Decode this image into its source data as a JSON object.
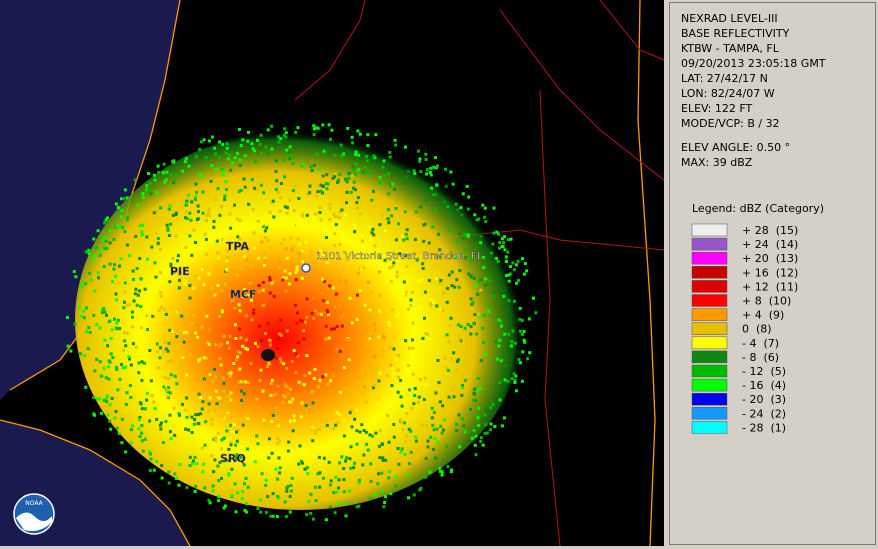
{
  "header": {
    "lines": [
      "NEXRAD LEVEL-III",
      "BASE REFLECTIVITY",
      "KTBW - TAMPA, FL",
      "09/20/2013 23:05:18 GMT",
      "LAT: 27/42/17 N",
      "LON: 82/24/07 W",
      "ELEV: 122 FT",
      "MODE/VCP: B / 32"
    ]
  },
  "elevation": {
    "angle": "ELEV ANGLE: 0.50 °",
    "max": "MAX: 39 dBZ"
  },
  "legend": {
    "title": "Legend: dBZ (Category)",
    "entries": [
      {
        "label": "+ 28  (15)",
        "color": "#eeeeee"
      },
      {
        "label": "+ 24  (14)",
        "color": "#9955cc"
      },
      {
        "label": "+ 20  (13)",
        "color": "#ff00ff"
      },
      {
        "label": "+ 16  (12)",
        "color": "#c80000"
      },
      {
        "label": "+ 12  (11)",
        "color": "#dd0000"
      },
      {
        "label": "+ 8  (10)",
        "color": "#ff0000"
      },
      {
        "label": "+ 4  (9)",
        "color": "#ff9900"
      },
      {
        "label": "0  (8)",
        "color": "#e6c000"
      },
      {
        "label": "- 4  (7)",
        "color": "#ffff00"
      },
      {
        "label": "- 8  (6)",
        "color": "#118811"
      },
      {
        "label": "- 12  (5)",
        "color": "#00bb00"
      },
      {
        "label": "- 16  (4)",
        "color": "#00ff00"
      },
      {
        "label": "- 20  (3)",
        "color": "#0000ee"
      },
      {
        "label": "- 24  (2)",
        "color": "#1199ff"
      },
      {
        "label": "- 28  (1)",
        "color": "#00ffff"
      }
    ]
  },
  "map": {
    "location": "1101 Victoria Street, Brandon, FL",
    "places": [
      "TPA",
      "PIE",
      "MCF",
      "SRQ"
    ],
    "logo": "NOAA"
  }
}
